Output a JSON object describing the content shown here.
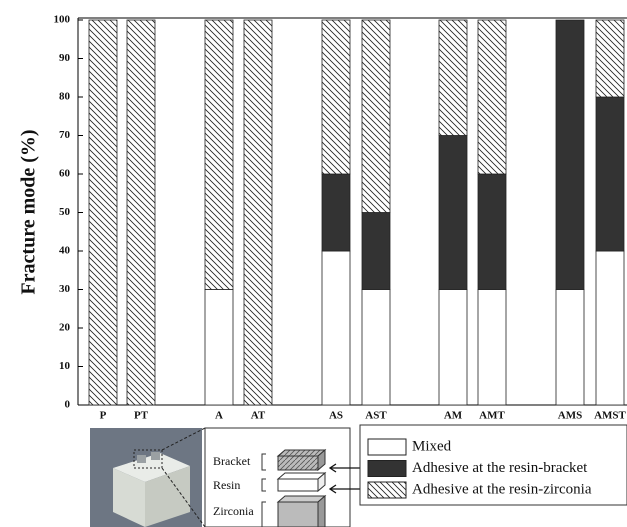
{
  "chart_data": {
    "type": "stacked_bar",
    "y_label": "Fracture mode (%)",
    "categories": [
      "P",
      "PT",
      "A",
      "AT",
      "AS",
      "AST",
      "AM",
      "AMT",
      "AMS",
      "AMST"
    ],
    "series": [
      {
        "name": "Mixed",
        "color": "#ffffff",
        "hatch": false,
        "values": [
          0,
          0,
          30,
          0,
          40,
          30,
          30,
          30,
          30,
          40
        ]
      },
      {
        "name": "Adhesive at the resin-bracket",
        "color": "#333333",
        "hatch": false,
        "values": [
          0,
          0,
          0,
          0,
          20,
          20,
          40,
          30,
          70,
          40
        ]
      },
      {
        "name": "Adhesive at the resin-zirconia",
        "color": "#ffffff",
        "hatch": true,
        "values": [
          100,
          100,
          70,
          100,
          40,
          50,
          30,
          40,
          0,
          20
        ]
      }
    ],
    "ylim": [
      0,
      100
    ],
    "yticks": [
      0,
      10,
      20,
      30,
      40,
      50,
      60,
      70,
      80,
      90,
      100
    ],
    "inset_labels": [
      "Bracket",
      "Resin",
      "Zirconia"
    ]
  }
}
